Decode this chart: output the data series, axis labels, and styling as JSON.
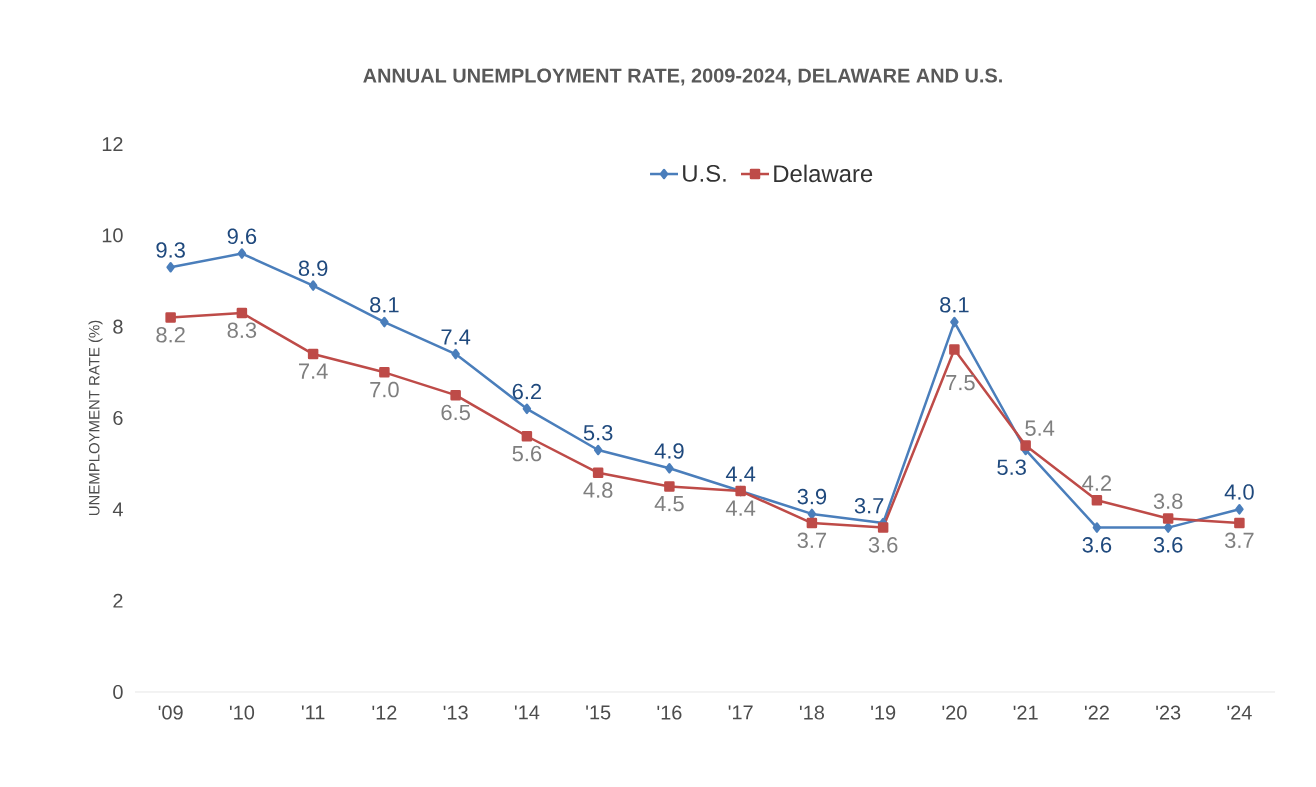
{
  "chart_data": {
    "type": "line",
    "title": "ANNUAL UNEMPLOYMENT RATE, 2009-2024, DELAWARE AND U.S.",
    "ylabel": "UNEMPLOYMENT RATE (%)",
    "categories": [
      "'09",
      "'10",
      "'11",
      "'12",
      "'13",
      "'14",
      "'15",
      "'16",
      "'17",
      "'18",
      "'19",
      "'20",
      "'21",
      "'22",
      "'23",
      "'24"
    ],
    "ylim": [
      0,
      12
    ],
    "yticks": [
      0,
      2,
      4,
      6,
      8,
      10,
      12
    ],
    "grid": false,
    "legend": "top",
    "series": [
      {
        "name": "U.S.",
        "color": "#4a7ebb",
        "marker": "diamond",
        "values": [
          9.3,
          9.6,
          8.9,
          8.1,
          7.4,
          6.2,
          5.3,
          4.9,
          4.4,
          3.9,
          3.7,
          8.1,
          5.3,
          3.6,
          3.6,
          4.0
        ],
        "value_labels": [
          "9.3",
          "9.6",
          "8.9",
          "8.1",
          "7.4",
          "6.2",
          "5.3",
          "4.9",
          "4.4",
          "3.9",
          "3.7",
          "8.1",
          "5.3",
          "3.6",
          "3.6",
          "4.0"
        ]
      },
      {
        "name": "Delaware",
        "color": "#be4b48",
        "marker": "square",
        "values": [
          8.2,
          8.3,
          7.4,
          7.0,
          6.5,
          5.6,
          4.8,
          4.5,
          4.4,
          3.7,
          3.6,
          7.5,
          5.4,
          4.2,
          3.8,
          3.7
        ],
        "value_labels": [
          "8.2",
          "8.3",
          "7.4",
          "7.0",
          "6.5",
          "5.6",
          "4.8",
          "4.5",
          "4.4",
          "3.7",
          "3.6",
          "7.5",
          "5.4",
          "4.2",
          "3.8",
          "3.7"
        ]
      }
    ]
  }
}
